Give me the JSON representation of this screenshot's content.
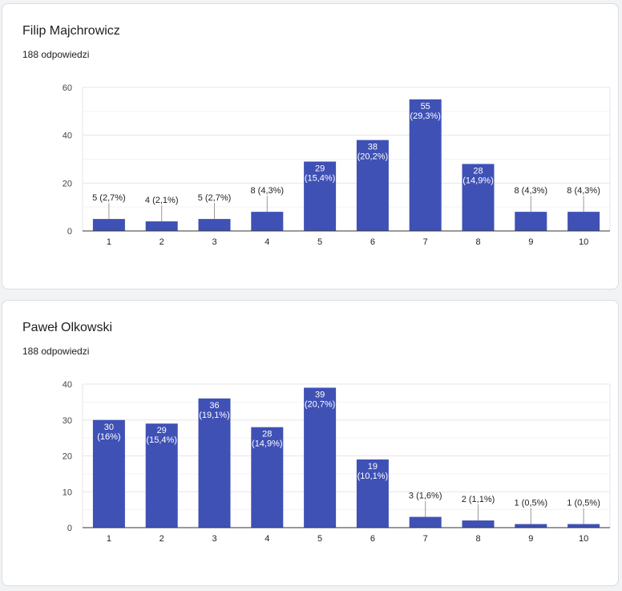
{
  "cards": [
    {
      "title": "Filip Majchrowicz",
      "response_count": "188 odpowiedzi"
    },
    {
      "title": "Paweł Olkowski",
      "response_count": "188 odpowiedzi"
    }
  ],
  "colors": {
    "bar": "#3f51b5",
    "grid": "#e6e6e6",
    "axis": "#333333",
    "text": "#202124"
  },
  "chart_data": [
    {
      "type": "bar",
      "categories": [
        "1",
        "2",
        "3",
        "4",
        "5",
        "6",
        "7",
        "8",
        "9",
        "10"
      ],
      "values": [
        5,
        4,
        5,
        8,
        29,
        38,
        55,
        28,
        8,
        8
      ],
      "data_labels": [
        "5 (2,7%)",
        "4 (2,1%)",
        "5 (2,7%)",
        "8 (4,3%)",
        "29 (15,4%)",
        "38 (20,2%)",
        "55 (29,3%)",
        "28 (14,9%)",
        "8 (4,3%)",
        "8 (4,3%)"
      ],
      "ylim": [
        0,
        60
      ],
      "yticks": [
        0,
        20,
        40,
        60
      ],
      "grid": true
    },
    {
      "type": "bar",
      "categories": [
        "1",
        "2",
        "3",
        "4",
        "5",
        "6",
        "7",
        "8",
        "9",
        "10"
      ],
      "values": [
        30,
        29,
        36,
        28,
        39,
        19,
        3,
        2,
        1,
        1
      ],
      "data_labels": [
        "30 (16%)",
        "29 (15,4%)",
        "36 (19,1%)",
        "28 (14,9%)",
        "39 (20,7%)",
        "19 (10,1%)",
        "3 (1,6%)",
        "2 (1,1%)",
        "1 (0,5%)",
        "1 (0,5%)"
      ],
      "ylim": [
        0,
        40
      ],
      "yticks": [
        0,
        10,
        20,
        30,
        40
      ],
      "grid": true
    }
  ]
}
